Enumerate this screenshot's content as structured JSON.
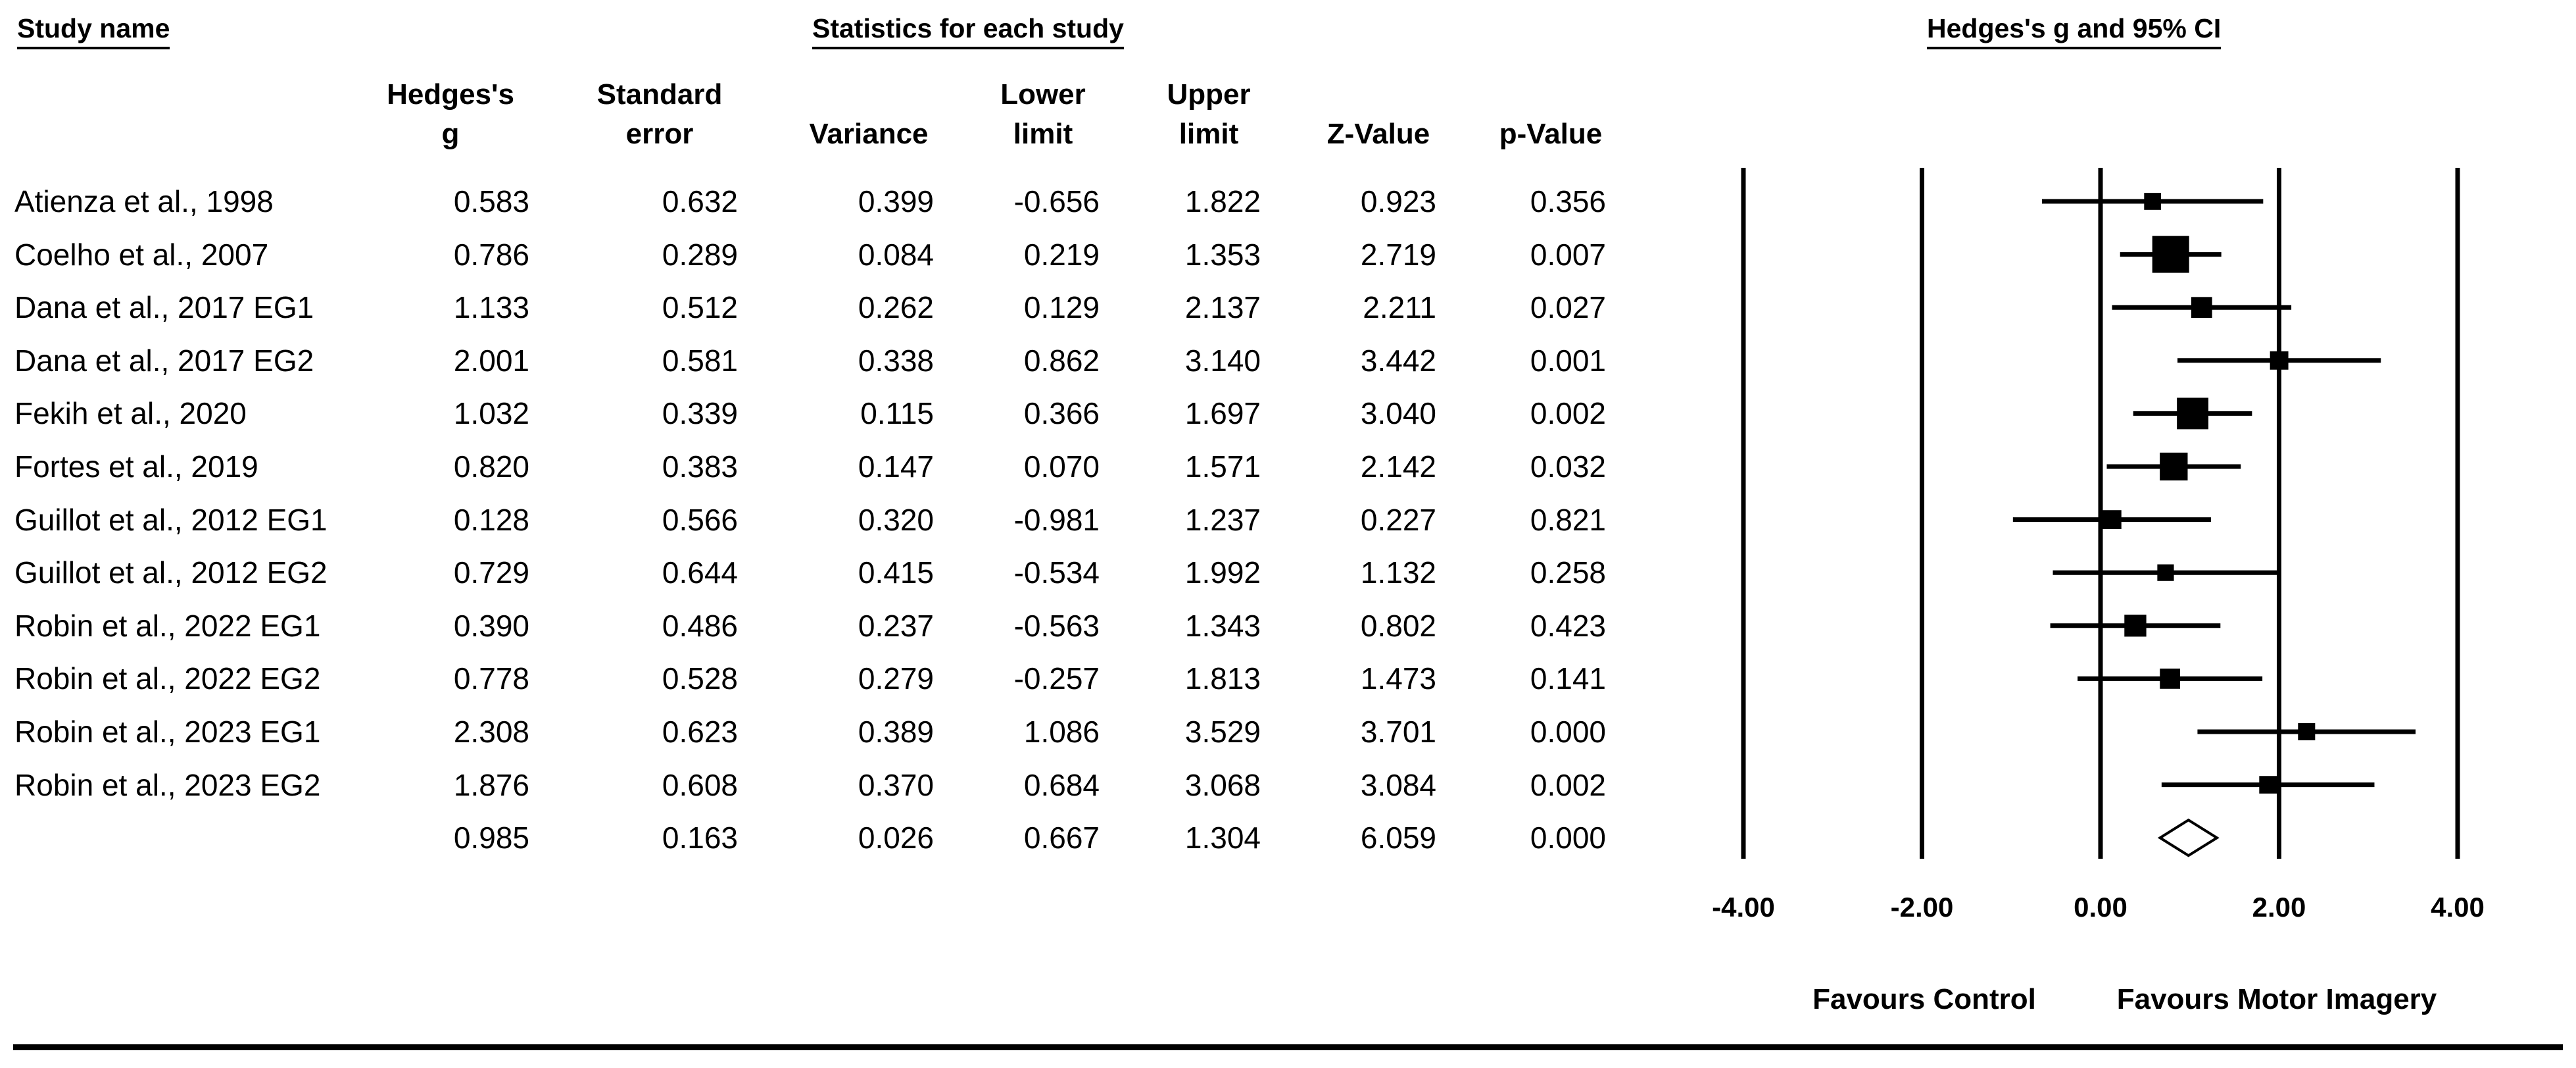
{
  "headers": {
    "study_name": "Study name",
    "statistics": "Statistics for each study",
    "forest": "Hedges's g and 95% CI"
  },
  "columns": [
    {
      "key": "g",
      "line1": "Hedges's",
      "line2": "g"
    },
    {
      "key": "se",
      "line1": "Standard",
      "line2": "error"
    },
    {
      "key": "var",
      "line1": "",
      "line2": "Variance"
    },
    {
      "key": "lower",
      "line1": "Lower",
      "line2": "limit"
    },
    {
      "key": "upper",
      "line1": "Upper",
      "line2": "limit"
    },
    {
      "key": "z",
      "line1": "",
      "line2": "Z-Value"
    },
    {
      "key": "p",
      "line1": "",
      "line2": "p-Value"
    }
  ],
  "chart_data": {
    "type": "forest",
    "xlabel": "",
    "xlim": [
      -4,
      4
    ],
    "ticks": [
      "-4.00",
      "-2.00",
      "0.00",
      "2.00",
      "4.00"
    ],
    "tick_values": [
      -4,
      -2,
      0,
      2,
      4
    ],
    "favours_left": "Favours Control",
    "favours_right": "Favours Motor Imagery",
    "studies": [
      {
        "name": "Atienza et al., 1998",
        "g": "0.583",
        "se": "0.632",
        "var": "0.399",
        "lower": "-0.656",
        "upper": "1.822",
        "z": "0.923",
        "p": "0.356"
      },
      {
        "name": "Coelho et al., 2007",
        "g": "0.786",
        "se": "0.289",
        "var": "0.084",
        "lower": "0.219",
        "upper": "1.353",
        "z": "2.719",
        "p": "0.007"
      },
      {
        "name": "Dana et al., 2017 EG1",
        "g": "1.133",
        "se": "0.512",
        "var": "0.262",
        "lower": "0.129",
        "upper": "2.137",
        "z": "2.211",
        "p": "0.027"
      },
      {
        "name": "Dana et al., 2017 EG2",
        "g": "2.001",
        "se": "0.581",
        "var": "0.338",
        "lower": "0.862",
        "upper": "3.140",
        "z": "3.442",
        "p": "0.001"
      },
      {
        "name": "Fekih et al., 2020",
        "g": "1.032",
        "se": "0.339",
        "var": "0.115",
        "lower": "0.366",
        "upper": "1.697",
        "z": "3.040",
        "p": "0.002"
      },
      {
        "name": "Fortes et al., 2019",
        "g": "0.820",
        "se": "0.383",
        "var": "0.147",
        "lower": "0.070",
        "upper": "1.571",
        "z": "2.142",
        "p": "0.032"
      },
      {
        "name": "Guillot et al., 2012 EG1",
        "g": "0.128",
        "se": "0.566",
        "var": "0.320",
        "lower": "-0.981",
        "upper": "1.237",
        "z": "0.227",
        "p": "0.821"
      },
      {
        "name": "Guillot et al., 2012 EG2",
        "g": "0.729",
        "se": "0.644",
        "var": "0.415",
        "lower": "-0.534",
        "upper": "1.992",
        "z": "1.132",
        "p": "0.258"
      },
      {
        "name": "Robin et al., 2022 EG1",
        "g": "0.390",
        "se": "0.486",
        "var": "0.237",
        "lower": "-0.563",
        "upper": "1.343",
        "z": "0.802",
        "p": "0.423"
      },
      {
        "name": "Robin et al., 2022 EG2",
        "g": "0.778",
        "se": "0.528",
        "var": "0.279",
        "lower": "-0.257",
        "upper": "1.813",
        "z": "1.473",
        "p": "0.141"
      },
      {
        "name": "Robin et al., 2023 EG1",
        "g": "2.308",
        "se": "0.623",
        "var": "0.389",
        "lower": "1.086",
        "upper": "3.529",
        "z": "3.701",
        "p": "0.000"
      },
      {
        "name": "Robin et al., 2023 EG2",
        "g": "1.876",
        "se": "0.608",
        "var": "0.370",
        "lower": "0.684",
        "upper": "3.068",
        "z": "3.084",
        "p": "0.002"
      }
    ],
    "summary": {
      "name": "",
      "g": "0.985",
      "se": "0.163",
      "var": "0.026",
      "lower": "0.667",
      "upper": "1.304",
      "z": "6.059",
      "p": "0.000"
    }
  }
}
